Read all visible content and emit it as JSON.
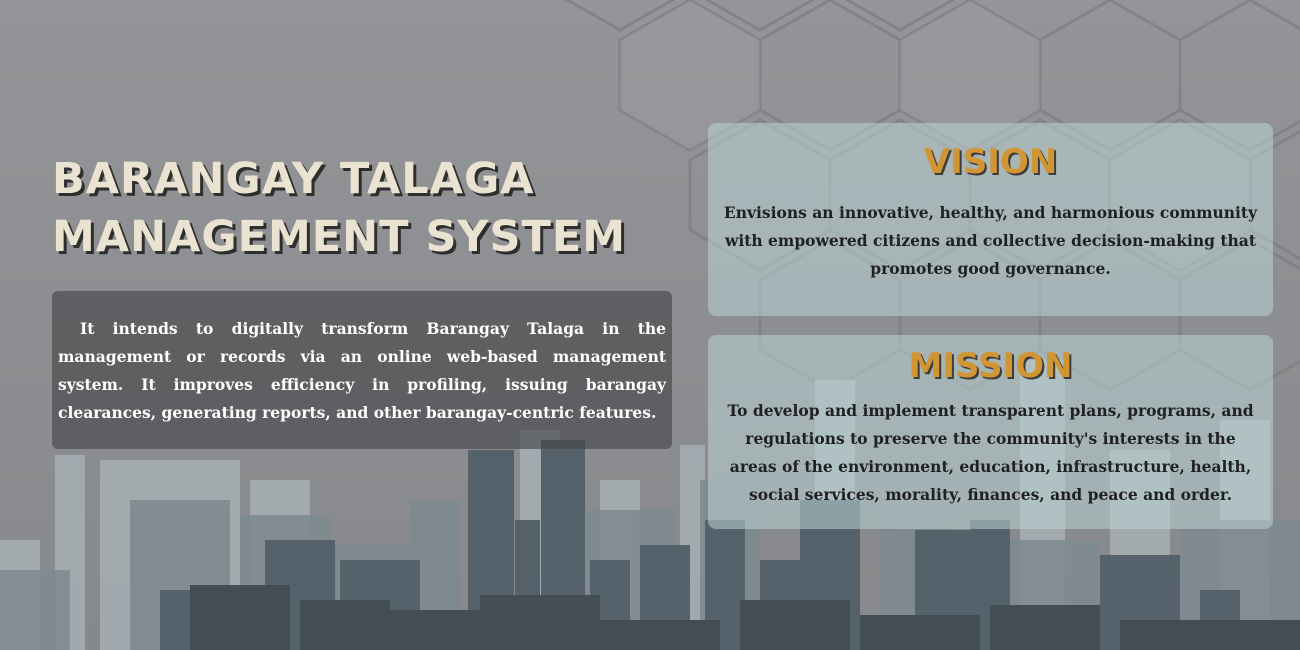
{
  "header": {
    "title_line1": "BARANGAY TALAGA",
    "title_line2": "MANAGEMENT SYSTEM"
  },
  "intro": {
    "text": "It intends to digitally transform Barangay Talaga in the management or records via an online web-based management system. It improves efficiency in profiling, issuing barangay clearances, generating reports, and other barangay-centric features."
  },
  "vision": {
    "heading": "VISION",
    "text": "Envisions an innovative, healthy, and harmonious community with empowered citizens and collective decision-making that promotes good governance."
  },
  "mission": {
    "heading": "MISSION",
    "text": "To develop and implement transparent plans, programs, and regulations to preserve the community's interests in the areas of the environment, education, infrastructure, health, social services, morality, finances, and peace and order."
  },
  "colors": {
    "background": "#8d8f92",
    "title": "#ebe3d2",
    "heading_accent": "#d19534",
    "intro_panel": "#48484a",
    "card_panel": "#bcd4d6"
  }
}
